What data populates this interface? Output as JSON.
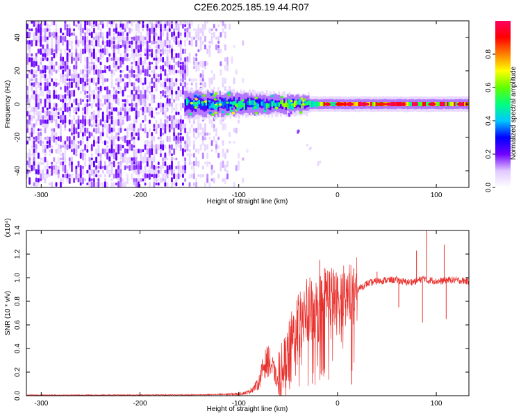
{
  "figure_title": "C2E6.2025.185.19.44.R07",
  "chart_data": [
    {
      "type": "heatmap",
      "title": "",
      "xlabel": "Height of straight line (km)",
      "ylabel": "Frequency (Hz)",
      "xlim": [
        -315,
        133
      ],
      "ylim": [
        -50,
        50
      ],
      "xticks": [
        -300,
        -200,
        -100,
        0,
        100
      ],
      "yticks": [
        -40,
        -20,
        0,
        20,
        40
      ],
      "colorbar": {
        "label": "Normalized spectral amplitude",
        "range": [
          0.0,
          1.0
        ],
        "ticks": [
          0.0,
          0.2,
          0.4,
          0.6,
          0.8
        ],
        "colormap": [
          "#ffffff",
          "#e0c8ff",
          "#7000ff",
          "#0000ff",
          "#00c8ff",
          "#00ff80",
          "#60ff00",
          "#ffff00",
          "#ff8000",
          "#ff0000",
          "#ff0060"
        ]
      },
      "features": {
        "noise_region_x": [
          -315,
          -100
        ],
        "dense_noise_x": [
          -315,
          -155
        ],
        "carrier_start_x": -155,
        "carrier_frequency_hz": 0,
        "carrier_peak_amplitude": 1.0,
        "secondary_tail_points": [
          [
            -50,
            -5
          ],
          [
            -40,
            -15
          ],
          [
            -30,
            -25
          ],
          [
            -20,
            -35
          ]
        ]
      }
    },
    {
      "type": "line",
      "title": "",
      "xlabel": "Height of straight line (km)",
      "ylabel": "SNR (10 * v/v)",
      "y_multiplier_label": "(x10⁴)",
      "xlim": [
        -315,
        133
      ],
      "ylim": [
        0,
        1.4
      ],
      "xticks": [
        -300,
        -200,
        -100,
        0,
        100
      ],
      "yticks": [
        0.0,
        0.2,
        0.4,
        0.6,
        0.8,
        1.0,
        1.2,
        1.4
      ],
      "color": "#e8302c",
      "series": [
        {
          "x": [
            -315,
            -250,
            -200,
            -150,
            -120,
            -100,
            -90,
            -80,
            -75,
            -70,
            -65,
            -60,
            -55,
            -50,
            -45,
            -40,
            -35,
            -30,
            -25,
            -20,
            -15,
            -10,
            -5,
            0,
            10,
            20,
            30,
            40,
            50,
            60,
            70,
            80,
            88,
            90,
            95,
            100,
            105,
            110,
            120,
            133
          ],
          "values": [
            0.005,
            0.005,
            0.006,
            0.007,
            0.01,
            0.015,
            0.03,
            0.1,
            0.25,
            0.3,
            0.22,
            0.1,
            0.2,
            0.32,
            0.5,
            0.62,
            0.7,
            0.72,
            0.75,
            0.72,
            0.82,
            0.86,
            0.82,
            0.78,
            0.86,
            0.9,
            0.95,
            0.97,
            0.98,
            0.98,
            0.96,
            0.97,
            1.0,
            0.97,
            0.98,
            0.97,
            0.97,
            0.98,
            0.98,
            0.97
          ]
        }
      ],
      "spikes": [
        [
          -18,
          1.15
        ],
        [
          -8,
          0.9
        ],
        [
          -5,
          0.85
        ],
        [
          90,
          1.4
        ],
        [
          86,
          0.62
        ],
        [
          108,
          1.28
        ],
        [
          110,
          0.65
        ],
        [
          80,
          1.23
        ],
        [
          62,
          0.75
        ],
        [
          40,
          1.05
        ]
      ]
    }
  ]
}
